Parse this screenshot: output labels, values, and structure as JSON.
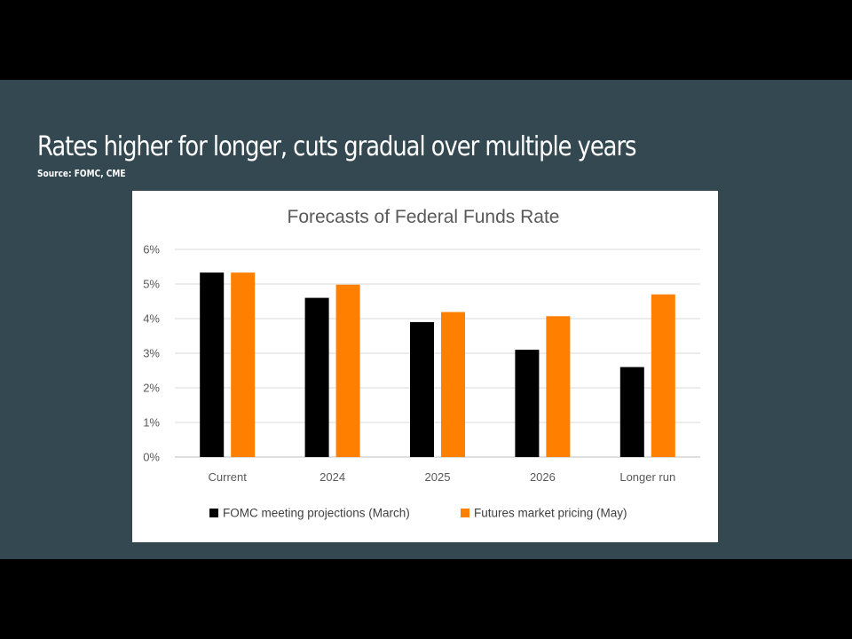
{
  "slide": {
    "title": "Rates higher for longer, cuts gradual over multiple years",
    "source": "Source: FOMC, CME",
    "background_color": "#344851",
    "frame_color": "#000000"
  },
  "chart_data": {
    "type": "bar",
    "title": "Forecasts of Federal Funds Rate",
    "categories": [
      "Current",
      "2024",
      "2025",
      "2026",
      "Longer run"
    ],
    "series": [
      {
        "name": "FOMC meeting projections (March)",
        "color": "#000000",
        "values": [
          5.33,
          4.6,
          3.9,
          3.1,
          2.6
        ]
      },
      {
        "name": "Futures market pricing (May)",
        "color": "#ff8000",
        "values": [
          5.33,
          4.98,
          4.19,
          4.07,
          4.7
        ]
      }
    ],
    "yticks": [
      "0%",
      "1%",
      "2%",
      "3%",
      "4%",
      "5%",
      "6%"
    ],
    "ylim": [
      0,
      6
    ],
    "xlabel": "",
    "ylabel": "",
    "grid": true,
    "legend": "bottom"
  }
}
